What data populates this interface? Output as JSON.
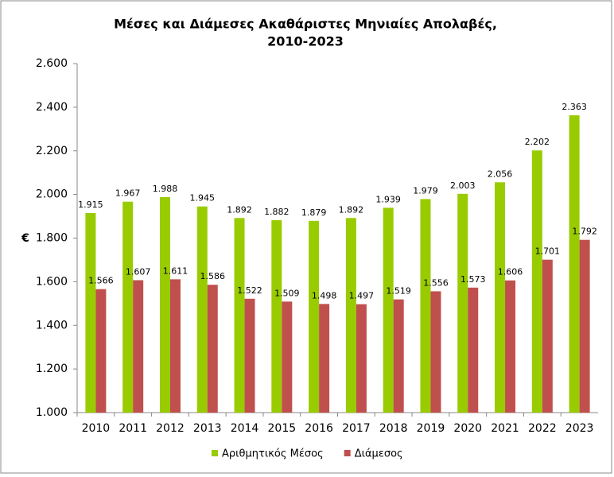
{
  "chart_data": {
    "type": "bar",
    "title": [
      "Μέσες και Διάμεσες Ακαθάριστες Μηνιαίες Απολαβές,",
      "2010-2023"
    ],
    "ylabel": "€",
    "categories": [
      "2010",
      "2011",
      "2012",
      "2013",
      "2014",
      "2015",
      "2016",
      "2017",
      "2018",
      "2019",
      "2020",
      "2021",
      "2022",
      "2023"
    ],
    "series": [
      {
        "name": "Αριθμητικός Μέσος",
        "color": "#99cc00",
        "values": [
          1915,
          1967,
          1988,
          1945,
          1892,
          1882,
          1879,
          1892,
          1939,
          1979,
          2003,
          2056,
          2202,
          2363
        ],
        "value_labels": [
          "1.915",
          "1.967",
          "1.988",
          "1.945",
          "1.892",
          "1.882",
          "1.879",
          "1.892",
          "1.939",
          "1.979",
          "2.003",
          "2.056",
          "2.202",
          "2.363"
        ]
      },
      {
        "name": "Διάμεσος",
        "color": "#c0504d",
        "values": [
          1566,
          1607,
          1611,
          1586,
          1522,
          1509,
          1498,
          1497,
          1519,
          1556,
          1573,
          1606,
          1701,
          1792
        ],
        "value_labels": [
          "1.566",
          "1.607",
          "1.611",
          "1.586",
          "1.522",
          "1.509",
          "1.498",
          "1.497",
          "1.519",
          "1.556",
          "1.573",
          "1.606",
          "1.701",
          "1.792"
        ]
      }
    ],
    "ylim": [
      1000,
      2600
    ],
    "yticks": [
      {
        "value": 1000,
        "label": "1.000"
      },
      {
        "value": 1200,
        "label": "1.200"
      },
      {
        "value": 1400,
        "label": "1.400"
      },
      {
        "value": 1600,
        "label": "1.600"
      },
      {
        "value": 1800,
        "label": "1.800"
      },
      {
        "value": 2000,
        "label": "2.000"
      },
      {
        "value": 2200,
        "label": "2.200"
      },
      {
        "value": 2400,
        "label": "2.400"
      },
      {
        "value": 2600,
        "label": "2.600"
      }
    ],
    "grid": false,
    "legend": "bottom"
  }
}
